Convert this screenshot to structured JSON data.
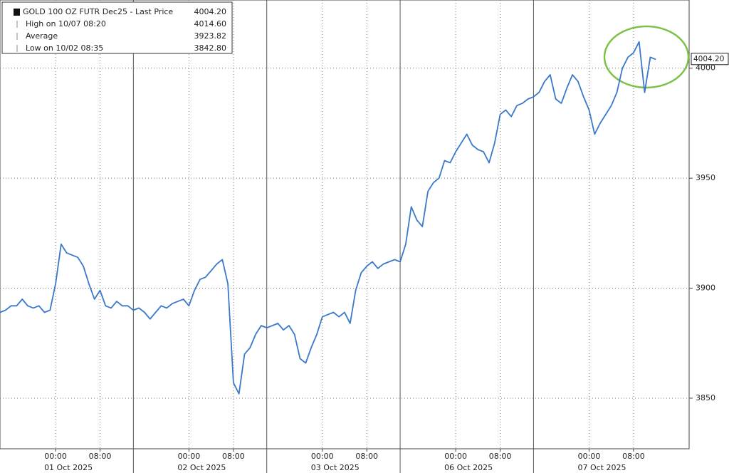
{
  "chart_data": {
    "type": "line",
    "series": [
      {
        "name": "GOLD 100 OZ FUTR Dec25 - Last Price",
        "color": "#3a78c9",
        "values": [
          3889,
          3890,
          3892,
          3892,
          3895,
          3892,
          3891,
          3892,
          3889,
          3890,
          3902,
          3920,
          3916,
          3915,
          3914,
          3910,
          3902,
          3895,
          3899,
          3892,
          3891,
          3894,
          3892,
          3892,
          3890,
          3891,
          3889,
          3886,
          3889,
          3892,
          3891,
          3893,
          3894,
          3895,
          3892,
          3899,
          3904,
          3905,
          3908,
          3911,
          3913,
          3902,
          3857,
          3852,
          3870,
          3873,
          3879,
          3883,
          3882,
          3883,
          3884,
          3881,
          3883,
          3879,
          3868,
          3866,
          3873,
          3879,
          3887,
          3888,
          3889,
          3887,
          3889,
          3884,
          3899,
          3907,
          3910,
          3912,
          3909,
          3911,
          3912,
          3913,
          3912,
          3920,
          3937,
          3931,
          3928,
          3944,
          3948,
          3950,
          3958,
          3957,
          3962,
          3966,
          3970,
          3965,
          3963,
          3962,
          3957,
          3966,
          3979,
          3981,
          3978,
          3983,
          3984,
          3986,
          3987,
          3989,
          3994,
          3997,
          3986,
          3984,
          3991,
          3997,
          3994,
          3987,
          3981,
          3970,
          3975,
          3979,
          3983,
          3989,
          4000,
          4005,
          4007,
          4012,
          3989,
          4005,
          4004
        ]
      }
    ],
    "stats": {
      "labels": [
        "GOLD 100 OZ FUTR Dec25 - Last Price",
        "High on 10/07 08:20",
        "Average",
        "Low on 10/02 08:35"
      ],
      "values": [
        4004.2,
        4014.6,
        3923.82,
        3842.8
      ],
      "value_labels": [
        "4004.20",
        "4014.60",
        "3923.82",
        "3842.80"
      ]
    },
    "xlim": [
      0,
      124
    ],
    "xticks": [
      {
        "value": 10,
        "label": "00:00"
      },
      {
        "value": 18,
        "label": "08:00"
      },
      {
        "value": 34,
        "label": "00:00"
      },
      {
        "value": 42,
        "label": "08:00"
      },
      {
        "value": 58,
        "label": "00:00"
      },
      {
        "value": 66,
        "label": "08:00"
      },
      {
        "value": 82,
        "label": "00:00"
      },
      {
        "value": 90,
        "label": "08:00"
      },
      {
        "value": 106,
        "label": "00:00"
      },
      {
        "value": 114,
        "label": "08:00"
      }
    ],
    "xdates": [
      {
        "value": 10,
        "label": "01 Oct 2025"
      },
      {
        "value": 34,
        "label": "02 Oct 2025"
      },
      {
        "value": 58,
        "label": "03 Oct 2025"
      },
      {
        "value": 82,
        "label": "06 Oct 2025"
      },
      {
        "value": 106,
        "label": "07 Oct 2025"
      }
    ],
    "ylim": [
      3827,
      4031
    ],
    "yticks": [
      3850,
      3900,
      3950,
      4000
    ],
    "grid": true
  }
}
